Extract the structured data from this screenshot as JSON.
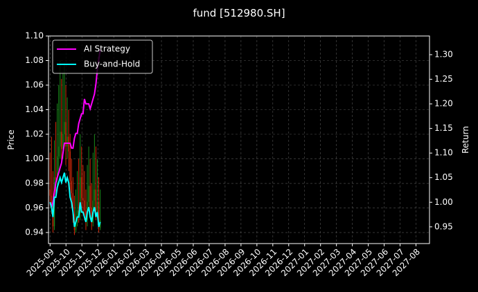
{
  "chart_data": {
    "type": "candlestick",
    "title": "fund [512980.SH]",
    "ylabel": "Price",
    "y2label": "Return",
    "x": [
      0,
      0.09,
      0.18,
      0.27,
      0.36,
      0.45,
      0.54,
      0.63,
      0.72,
      0.81,
      0.9,
      0.99,
      1.08,
      1.17,
      1.26,
      1.35,
      1.44,
      1.53,
      1.62,
      1.71,
      1.8,
      1.89,
      1.98,
      2.07,
      2.16,
      2.25,
      2.34,
      2.43,
      2.52,
      2.61,
      2.7,
      2.79,
      2.88,
      2.97,
      3.06,
      3.15
    ],
    "open": [
      0.975,
      0.97,
      0.962,
      0.945,
      0.985,
      0.983,
      1.002,
      1.01,
      1.022,
      1.008,
      1.02,
      1.03,
      1.01,
      1.018,
      1.006,
      0.982,
      0.972,
      0.955,
      0.942,
      0.948,
      0.958,
      0.956,
      0.985,
      0.968,
      0.966,
      0.958,
      0.95,
      0.965,
      0.978,
      0.96,
      0.948,
      0.966,
      0.975,
      0.958,
      0.965,
      0.944
    ],
    "high": [
      1.005,
      1.018,
      0.99,
      1.015,
      1.03,
      1.045,
      1.06,
      1.08,
      1.065,
      1.07,
      1.078,
      1.06,
      1.05,
      1.04,
      1.02,
      1.0,
      0.985,
      0.97,
      0.975,
      0.99,
      1.0,
      1.02,
      1.01,
      0.995,
      0.99,
      0.975,
      0.995,
      1.01,
      1.0,
      0.98,
      1.005,
      1.02,
      1.01,
      1.0,
      0.985,
      0.975
    ],
    "low": [
      0.962,
      0.955,
      0.94,
      0.942,
      0.97,
      0.975,
      0.99,
      1.0,
      0.995,
      1.0,
      1.01,
      0.995,
      1.0,
      0.99,
      0.97,
      0.96,
      0.948,
      0.938,
      0.94,
      0.945,
      0.948,
      0.95,
      0.96,
      0.955,
      0.95,
      0.942,
      0.945,
      0.96,
      0.952,
      0.942,
      0.945,
      0.96,
      0.95,
      0.952,
      0.94,
      0.942
    ],
    "close": [
      0.97,
      0.962,
      0.945,
      0.985,
      0.983,
      1.002,
      1.01,
      1.022,
      1.008,
      1.02,
      1.03,
      1.01,
      1.018,
      1.006,
      0.982,
      0.972,
      0.955,
      0.942,
      0.948,
      0.958,
      0.956,
      0.985,
      0.968,
      0.966,
      0.958,
      0.95,
      0.965,
      0.978,
      0.96,
      0.948,
      0.966,
      0.975,
      0.958,
      0.965,
      0.944,
      0.95
    ],
    "up_color": "#1a8a1a",
    "down_color": "#d42a0a",
    "series": [
      {
        "name": "AI Strategy",
        "color": "#ff00ff",
        "axis": "y2",
        "values": [
          1.0,
          0.99,
          1.0,
          1.02,
          1.04,
          1.05,
          1.06,
          1.07,
          1.08,
          1.1,
          1.12,
          1.12,
          1.12,
          1.12,
          1.12,
          1.11,
          1.11,
          1.13,
          1.14,
          1.14,
          1.16,
          1.17,
          1.18,
          1.18,
          1.21,
          1.2,
          1.2,
          1.2,
          1.19,
          1.2,
          1.21,
          1.22,
          1.24,
          1.27,
          1.29,
          1.31
        ]
      },
      {
        "name": "Buy-and-Hold",
        "color": "#00ffff",
        "axis": "y2",
        "values": [
          1.0,
          0.99,
          0.97,
          1.01,
          1.01,
          1.03,
          1.04,
          1.05,
          1.04,
          1.05,
          1.06,
          1.04,
          1.05,
          1.04,
          1.01,
          1.0,
          0.98,
          0.95,
          0.96,
          0.97,
          0.97,
          1.0,
          0.98,
          0.98,
          0.97,
          0.96,
          0.98,
          0.99,
          0.97,
          0.96,
          0.98,
          0.99,
          0.97,
          0.98,
          0.95,
          0.96
        ]
      }
    ],
    "xlim": [
      -0.1,
      23.85
    ],
    "xticks": [
      {
        "value": 0,
        "label": "2025-09"
      },
      {
        "value": 1,
        "label": "2025-10"
      },
      {
        "value": 2,
        "label": "2025-11"
      },
      {
        "value": 3,
        "label": "2025-12"
      },
      {
        "value": 4,
        "label": "2026-01"
      },
      {
        "value": 5,
        "label": "2026-02"
      },
      {
        "value": 6,
        "label": "2026-03"
      },
      {
        "value": 7,
        "label": "2026-04"
      },
      {
        "value": 8,
        "label": "2026-05"
      },
      {
        "value": 9,
        "label": "2026-06"
      },
      {
        "value": 10,
        "label": "2026-07"
      },
      {
        "value": 11,
        "label": "2026-08"
      },
      {
        "value": 12,
        "label": "2026-09"
      },
      {
        "value": 13,
        "label": "2026-10"
      },
      {
        "value": 14,
        "label": "2026-11"
      },
      {
        "value": 15,
        "label": "2026-12"
      },
      {
        "value": 16,
        "label": "2027-01"
      },
      {
        "value": 17,
        "label": "2027-02"
      },
      {
        "value": 18,
        "label": "2027-03"
      },
      {
        "value": 19,
        "label": "2027-04"
      },
      {
        "value": 20,
        "label": "2027-05"
      },
      {
        "value": 21,
        "label": "2027-06"
      },
      {
        "value": 22,
        "label": "2027-07"
      },
      {
        "value": 23,
        "label": "2027-08"
      }
    ],
    "ylim": [
      0.931,
      1.1
    ],
    "yticks": [
      {
        "value": 0.94,
        "label": "0.94"
      },
      {
        "value": 0.96,
        "label": "0.96"
      },
      {
        "value": 0.98,
        "label": "0.98"
      },
      {
        "value": 1.0,
        "label": "1.00"
      },
      {
        "value": 1.02,
        "label": "1.02"
      },
      {
        "value": 1.04,
        "label": "1.04"
      },
      {
        "value": 1.06,
        "label": "1.06"
      },
      {
        "value": 1.08,
        "label": "1.08"
      },
      {
        "value": 1.1,
        "label": "1.10"
      }
    ],
    "y2lim": [
      0.916,
      1.338
    ],
    "y2ticks": [
      {
        "value": 0.95,
        "label": "0.95"
      },
      {
        "value": 1.0,
        "label": "1.00"
      },
      {
        "value": 1.05,
        "label": "1.05"
      },
      {
        "value": 1.1,
        "label": "1.10"
      },
      {
        "value": 1.15,
        "label": "1.15"
      },
      {
        "value": 1.2,
        "label": "1.20"
      },
      {
        "value": 1.25,
        "label": "1.25"
      },
      {
        "value": 1.3,
        "label": "1.30"
      }
    ],
    "grid": true,
    "legend": "upper left"
  }
}
